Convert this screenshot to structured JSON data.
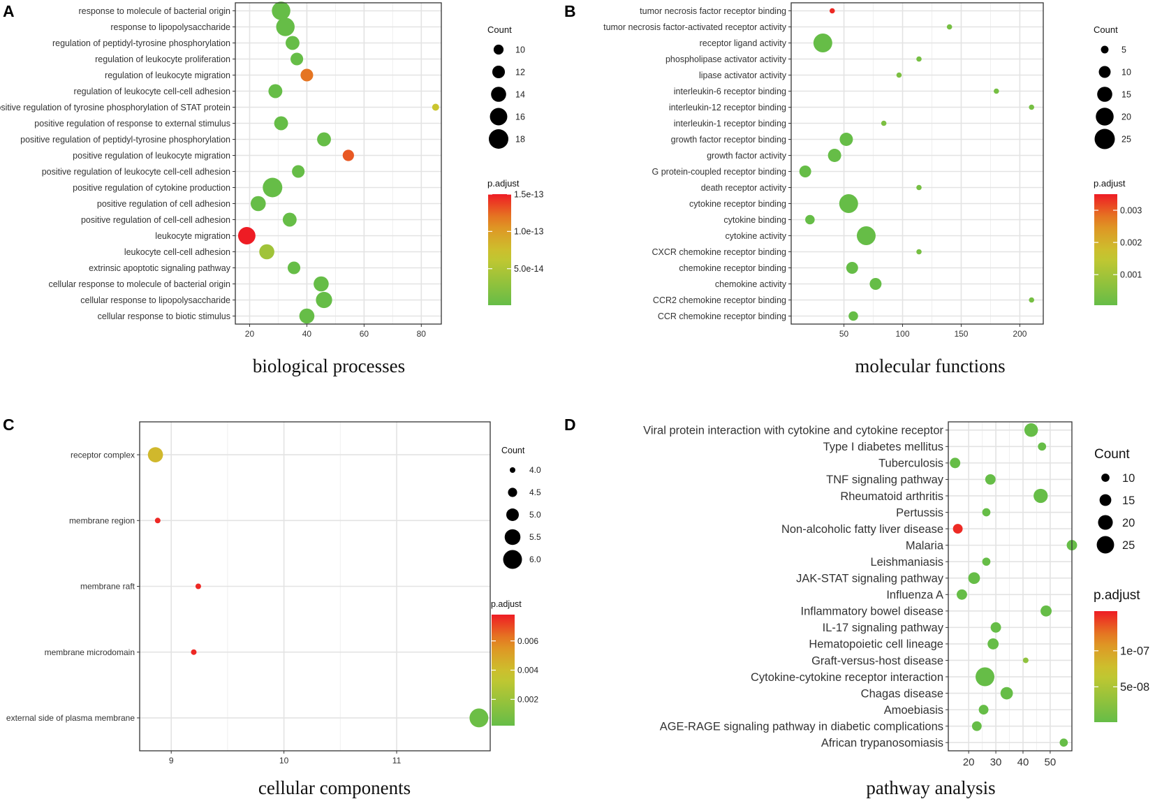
{
  "chart_data": [
    {
      "id": "A",
      "type": "scatter",
      "panel_label": "A",
      "title": "biological processes",
      "xlim": [
        15,
        87
      ],
      "xticks": [
        20,
        40,
        60,
        80
      ],
      "categories": [
        "response to molecule of bacterial origin",
        "response to lipopolysaccharide",
        "regulation of peptidyl-tyrosine phosphorylation",
        "regulation of leukocyte proliferation",
        "regulation of leukocyte migration",
        "regulation of leukocyte cell-cell adhesion",
        "positive regulation of tyrosine phosphorylation of STAT protein",
        "positive regulation of response to external stimulus",
        "positive regulation of peptidyl-tyrosine phosphorylation",
        "positive regulation of leukocyte migration",
        "positive regulation of leukocyte cell-cell adhesion",
        "positive regulation of cytokine production",
        "positive regulation of cell adhesion",
        "positive regulation of cell-cell adhesion",
        "leukocyte migration",
        "leukocyte cell-cell adhesion",
        "extrinsic apoptotic signaling pathway",
        "cellular response to molecule of bacterial origin",
        "cellular response to lipopolysaccharide",
        "cellular response to biotic stimulus"
      ],
      "x": [
        31,
        32.5,
        35,
        36.5,
        40,
        29,
        85,
        31,
        46,
        54.5,
        37,
        28,
        23,
        34,
        19,
        26,
        35.5,
        45,
        46,
        40
      ],
      "count": [
        17,
        17,
        13,
        12,
        12,
        13,
        8,
        13,
        13,
        11,
        12,
        18,
        14,
        13,
        16,
        14,
        12,
        14,
        15,
        14
      ],
      "p_adjust": [
        1e-15,
        1e-15,
        1e-15,
        1e-15,
        1.2e-13,
        1e-15,
        7e-14,
        1e-15,
        1e-15,
        1.3e-13,
        1e-15,
        1e-15,
        1e-15,
        1e-15,
        1.5e-13,
        4e-14,
        1e-15,
        1e-15,
        1e-15,
        1e-15
      ],
      "size_legend": {
        "title": "Count",
        "values": [
          10,
          12,
          14,
          16,
          18
        ],
        "labels": [
          "10",
          "12",
          "14",
          "16",
          "18"
        ]
      },
      "color_legend": {
        "title": "p.adjust",
        "min": 1e-15,
        "max": 1.5e-13,
        "ticks": [
          1.5e-13,
          1e-13,
          5e-14
        ],
        "tick_labels": [
          "1.5e-13",
          "1.0e-13",
          "5.0e-14"
        ]
      },
      "count_range": [
        8,
        18
      ]
    },
    {
      "id": "B",
      "type": "scatter",
      "panel_label": "B",
      "title": "molecular functions",
      "xlim": [
        5,
        220
      ],
      "xticks": [
        50,
        100,
        150,
        200
      ],
      "categories": [
        "tumor necrosis factor receptor binding",
        "tumor necrosis factor-activated receptor activity",
        "receptor ligand activity",
        "phospholipase activator activity",
        "lipase activator activity",
        "interleukin-6 receptor binding",
        "interleukin-12 receptor binding",
        "interleukin-1 receptor binding",
        "growth factor receptor binding",
        "growth factor activity",
        "G protein-coupled receptor binding",
        "death receptor activity",
        "cytokine receptor binding",
        "cytokine binding",
        "cytokine activity",
        "CXCR chemokine receptor binding",
        "chemokine receptor binding",
        "chemokine activity",
        "CCR2 chemokine receptor binding",
        "CCR chemokine receptor binding"
      ],
      "x": [
        40,
        140,
        32,
        114,
        97,
        180,
        210,
        84,
        52,
        42,
        17,
        114,
        54,
        21,
        69,
        114,
        57,
        77,
        210,
        58
      ],
      "count": [
        3,
        3,
        22,
        3,
        3,
        3,
        3,
        3,
        12,
        12,
        10,
        3,
        22,
        7,
        22,
        3,
        10,
        10,
        3,
        7
      ],
      "p_adjust": [
        0.0034,
        0.0003,
        5e-05,
        0.0003,
        0.0004,
        0.0003,
        0.0003,
        0.0004,
        5e-05,
        5e-05,
        5e-05,
        0.0003,
        5e-05,
        5e-05,
        5e-05,
        0.0003,
        5e-05,
        5e-05,
        0.0003,
        5e-05
      ],
      "size_legend": {
        "title": "Count",
        "values": [
          5,
          10,
          15,
          20,
          25
        ],
        "labels": [
          "5",
          "10",
          "15",
          "20",
          "25"
        ]
      },
      "color_legend": {
        "title": "p.adjust",
        "min": 5e-05,
        "max": 0.0035,
        "ticks": [
          0.003,
          0.002,
          0.001
        ],
        "tick_labels": [
          "0.003",
          "0.002",
          "0.001"
        ]
      },
      "count_range": [
        3,
        25
      ]
    },
    {
      "id": "C",
      "type": "scatter",
      "panel_label": "C",
      "title": "cellular components",
      "xlim": [
        8.72,
        11.83
      ],
      "xticks": [
        9,
        10,
        11
      ],
      "categories": [
        "receptor complex",
        "membrane region",
        "membrane raft",
        "membrane microdomain",
        "external side of plasma membrane"
      ],
      "x": [
        8.86,
        8.88,
        9.24,
        9.2,
        11.73
      ],
      "count": [
        5.4,
        4.0,
        4.0,
        4.0,
        6.0
      ],
      "p_adjust": [
        0.0042,
        0.0076,
        0.0076,
        0.0076,
        0.0004
      ],
      "size_legend": {
        "title": "Count",
        "values": [
          4.0,
          4.5,
          5.0,
          5.5,
          6.0
        ],
        "labels": [
          "4.0",
          "4.5",
          "5.0",
          "5.5",
          "6.0"
        ]
      },
      "color_legend": {
        "title": "p.adjust",
        "min": 0.0002,
        "max": 0.0078,
        "ticks": [
          0.006,
          0.004,
          0.002
        ],
        "tick_labels": [
          "0.006",
          "0.004",
          "0.002"
        ]
      },
      "count_range": [
        4,
        6
      ]
    },
    {
      "id": "D",
      "type": "scatter",
      "panel_label": "D",
      "title": "pathway analysis",
      "xlim": [
        12.5,
        58
      ],
      "xticks": [
        20,
        30,
        40,
        50
      ],
      "categories": [
        "Viral protein interaction with cytokine and cytokine receptor",
        "Type I diabetes mellitus",
        "Tuberculosis",
        "TNF signaling pathway",
        "Rheumatoid arthritis",
        "Pertussis",
        "Non-alcoholic fatty liver disease",
        "Malaria",
        "Leishmaniasis",
        "JAK-STAT signaling pathway",
        "Influenza A",
        "Inflammatory bowel disease",
        "IL-17 signaling pathway",
        "Hematopoietic cell lineage",
        "Graft-versus-host disease",
        "Cytokine-cytokine receptor interaction",
        "Chagas disease",
        "Amoebiasis",
        "AGE-RAGE signaling pathway in diabetic complications",
        "African trypanosomiasis"
      ],
      "x": [
        43,
        47,
        15,
        28,
        46.5,
        26.5,
        16,
        58,
        26.5,
        22,
        17.5,
        48.5,
        30,
        29,
        41,
        26,
        34,
        25.5,
        23,
        55
      ],
      "count": [
        18,
        10,
        13,
        13,
        19,
        10,
        12,
        13,
        10,
        15,
        13,
        14,
        13,
        14,
        7,
        28,
        16,
        12,
        12,
        10
      ],
      "p_adjust": [
        1e-09,
        1e-09,
        1e-09,
        1e-09,
        1e-09,
        1e-09,
        1.5e-07,
        1e-09,
        1e-09,
        1e-09,
        1e-09,
        1e-09,
        1e-09,
        1e-09,
        3e-08,
        1e-09,
        1e-09,
        1e-09,
        1e-09,
        1e-09
      ],
      "size_legend": {
        "title": "Count",
        "values": [
          10,
          15,
          20,
          25
        ],
        "labels": [
          "10",
          "15",
          "20",
          "25"
        ]
      },
      "color_legend": {
        "title": "p.adjust",
        "min": 1e-09,
        "max": 1.55e-07,
        "ticks": [
          1e-07,
          5e-08
        ],
        "tick_labels": [
          "1e-07",
          "5e-08"
        ]
      },
      "count_range": [
        7,
        28
      ]
    }
  ],
  "colors": {
    "low": "#66bd47",
    "mid": "#c9c82f",
    "mid2": "#e38b22",
    "high": "#ee1c24",
    "grid": "#e3e3e3",
    "panel_border": "#333333"
  }
}
